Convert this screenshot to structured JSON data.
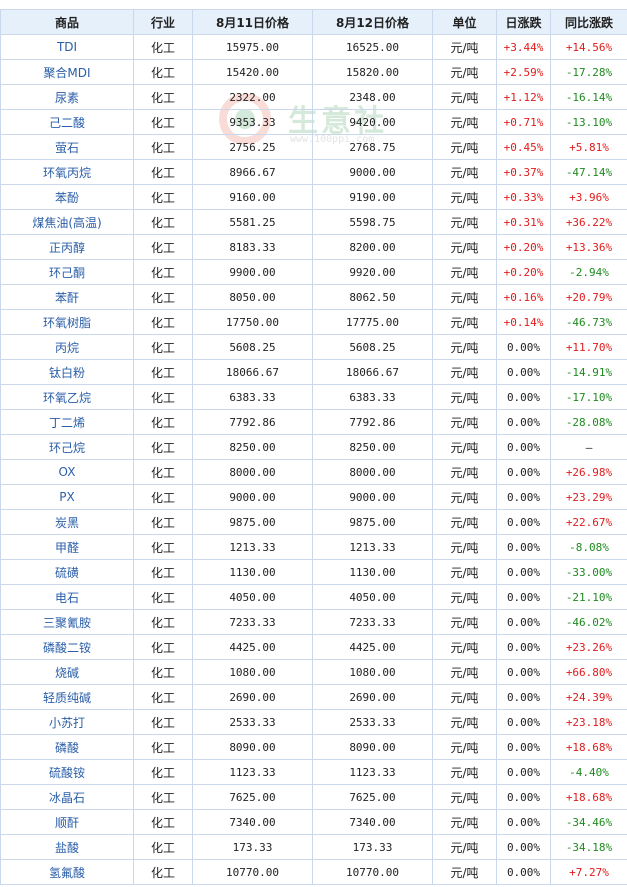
{
  "headers": [
    "商品",
    "行业",
    "8月11日价格",
    "8月12日价格",
    "单位",
    "日涨跌",
    "同比涨跌"
  ],
  "rows": [
    {
      "name": "TDI",
      "industry": "化工",
      "p1": "15975.00",
      "p2": "16525.00",
      "unit": "元/吨",
      "daily": "+3.44%",
      "yoy": "+14.56%"
    },
    {
      "name": "聚合MDI",
      "industry": "化工",
      "p1": "15420.00",
      "p2": "15820.00",
      "unit": "元/吨",
      "daily": "+2.59%",
      "yoy": "-17.28%"
    },
    {
      "name": "尿素",
      "industry": "化工",
      "p1": "2322.00",
      "p2": "2348.00",
      "unit": "元/吨",
      "daily": "+1.12%",
      "yoy": "-16.14%"
    },
    {
      "name": "己二酸",
      "industry": "化工",
      "p1": "9353.33",
      "p2": "9420.00",
      "unit": "元/吨",
      "daily": "+0.71%",
      "yoy": "-13.10%"
    },
    {
      "name": "萤石",
      "industry": "化工",
      "p1": "2756.25",
      "p2": "2768.75",
      "unit": "元/吨",
      "daily": "+0.45%",
      "yoy": "+5.81%"
    },
    {
      "name": "环氧丙烷",
      "industry": "化工",
      "p1": "8966.67",
      "p2": "9000.00",
      "unit": "元/吨",
      "daily": "+0.37%",
      "yoy": "-47.14%"
    },
    {
      "name": "苯酚",
      "industry": "化工",
      "p1": "9160.00",
      "p2": "9190.00",
      "unit": "元/吨",
      "daily": "+0.33%",
      "yoy": "+3.96%"
    },
    {
      "name": "煤焦油(高温)",
      "industry": "化工",
      "p1": "5581.25",
      "p2": "5598.75",
      "unit": "元/吨",
      "daily": "+0.31%",
      "yoy": "+36.22%"
    },
    {
      "name": "正丙醇",
      "industry": "化工",
      "p1": "8183.33",
      "p2": "8200.00",
      "unit": "元/吨",
      "daily": "+0.20%",
      "yoy": "+13.36%"
    },
    {
      "name": "环己酮",
      "industry": "化工",
      "p1": "9900.00",
      "p2": "9920.00",
      "unit": "元/吨",
      "daily": "+0.20%",
      "yoy": "-2.94%"
    },
    {
      "name": "苯酐",
      "industry": "化工",
      "p1": "8050.00",
      "p2": "8062.50",
      "unit": "元/吨",
      "daily": "+0.16%",
      "yoy": "+20.79%"
    },
    {
      "name": "环氧树脂",
      "industry": "化工",
      "p1": "17750.00",
      "p2": "17775.00",
      "unit": "元/吨",
      "daily": "+0.14%",
      "yoy": "-46.73%"
    },
    {
      "name": "丙烷",
      "industry": "化工",
      "p1": "5608.25",
      "p2": "5608.25",
      "unit": "元/吨",
      "daily": "0.00%",
      "yoy": "+11.70%"
    },
    {
      "name": "钛白粉",
      "industry": "化工",
      "p1": "18066.67",
      "p2": "18066.67",
      "unit": "元/吨",
      "daily": "0.00%",
      "yoy": "-14.91%"
    },
    {
      "name": "环氧乙烷",
      "industry": "化工",
      "p1": "6383.33",
      "p2": "6383.33",
      "unit": "元/吨",
      "daily": "0.00%",
      "yoy": "-17.10%"
    },
    {
      "name": "丁二烯",
      "industry": "化工",
      "p1": "7792.86",
      "p2": "7792.86",
      "unit": "元/吨",
      "daily": "0.00%",
      "yoy": "-28.08%"
    },
    {
      "name": "环己烷",
      "industry": "化工",
      "p1": "8250.00",
      "p2": "8250.00",
      "unit": "元/吨",
      "daily": "0.00%",
      "yoy": "—"
    },
    {
      "name": "OX",
      "industry": "化工",
      "p1": "8000.00",
      "p2": "8000.00",
      "unit": "元/吨",
      "daily": "0.00%",
      "yoy": "+26.98%"
    },
    {
      "name": "PX",
      "industry": "化工",
      "p1": "9000.00",
      "p2": "9000.00",
      "unit": "元/吨",
      "daily": "0.00%",
      "yoy": "+23.29%"
    },
    {
      "name": "炭黑",
      "industry": "化工",
      "p1": "9875.00",
      "p2": "9875.00",
      "unit": "元/吨",
      "daily": "0.00%",
      "yoy": "+22.67%"
    },
    {
      "name": "甲醛",
      "industry": "化工",
      "p1": "1213.33",
      "p2": "1213.33",
      "unit": "元/吨",
      "daily": "0.00%",
      "yoy": "-8.08%"
    },
    {
      "name": "硫磺",
      "industry": "化工",
      "p1": "1130.00",
      "p2": "1130.00",
      "unit": "元/吨",
      "daily": "0.00%",
      "yoy": "-33.00%"
    },
    {
      "name": "电石",
      "industry": "化工",
      "p1": "4050.00",
      "p2": "4050.00",
      "unit": "元/吨",
      "daily": "0.00%",
      "yoy": "-21.10%"
    },
    {
      "name": "三聚氰胺",
      "industry": "化工",
      "p1": "7233.33",
      "p2": "7233.33",
      "unit": "元/吨",
      "daily": "0.00%",
      "yoy": "-46.02%"
    },
    {
      "name": "磷酸二铵",
      "industry": "化工",
      "p1": "4425.00",
      "p2": "4425.00",
      "unit": "元/吨",
      "daily": "0.00%",
      "yoy": "+23.26%"
    },
    {
      "name": "烧碱",
      "industry": "化工",
      "p1": "1080.00",
      "p2": "1080.00",
      "unit": "元/吨",
      "daily": "0.00%",
      "yoy": "+66.80%"
    },
    {
      "name": "轻质纯碱",
      "industry": "化工",
      "p1": "2690.00",
      "p2": "2690.00",
      "unit": "元/吨",
      "daily": "0.00%",
      "yoy": "+24.39%"
    },
    {
      "name": "小苏打",
      "industry": "化工",
      "p1": "2533.33",
      "p2": "2533.33",
      "unit": "元/吨",
      "daily": "0.00%",
      "yoy": "+23.18%"
    },
    {
      "name": "磷酸",
      "industry": "化工",
      "p1": "8090.00",
      "p2": "8090.00",
      "unit": "元/吨",
      "daily": "0.00%",
      "yoy": "+18.68%"
    },
    {
      "name": "硫酸铵",
      "industry": "化工",
      "p1": "1123.33",
      "p2": "1123.33",
      "unit": "元/吨",
      "daily": "0.00%",
      "yoy": "-4.40%"
    },
    {
      "name": "冰晶石",
      "industry": "化工",
      "p1": "7625.00",
      "p2": "7625.00",
      "unit": "元/吨",
      "daily": "0.00%",
      "yoy": "+18.68%"
    },
    {
      "name": "顺酐",
      "industry": "化工",
      "p1": "7340.00",
      "p2": "7340.00",
      "unit": "元/吨",
      "daily": "0.00%",
      "yoy": "-34.46%"
    },
    {
      "name": "盐酸",
      "industry": "化工",
      "p1": "173.33",
      "p2": "173.33",
      "unit": "元/吨",
      "daily": "0.00%",
      "yoy": "-34.18%"
    },
    {
      "name": "氢氟酸",
      "industry": "化工",
      "p1": "10770.00",
      "p2": "10770.00",
      "unit": "元/吨",
      "daily": "0.00%",
      "yoy": "+7.27%"
    }
  ],
  "watermark": {
    "text": "生意社",
    "url": "www.100ppi.com"
  },
  "colors": {
    "up": "#e01b1b",
    "down": "#1e8a1e",
    "header_bg": "#e6f0fb",
    "border": "#c9d8ea",
    "name_link": "#2a5ea8"
  }
}
